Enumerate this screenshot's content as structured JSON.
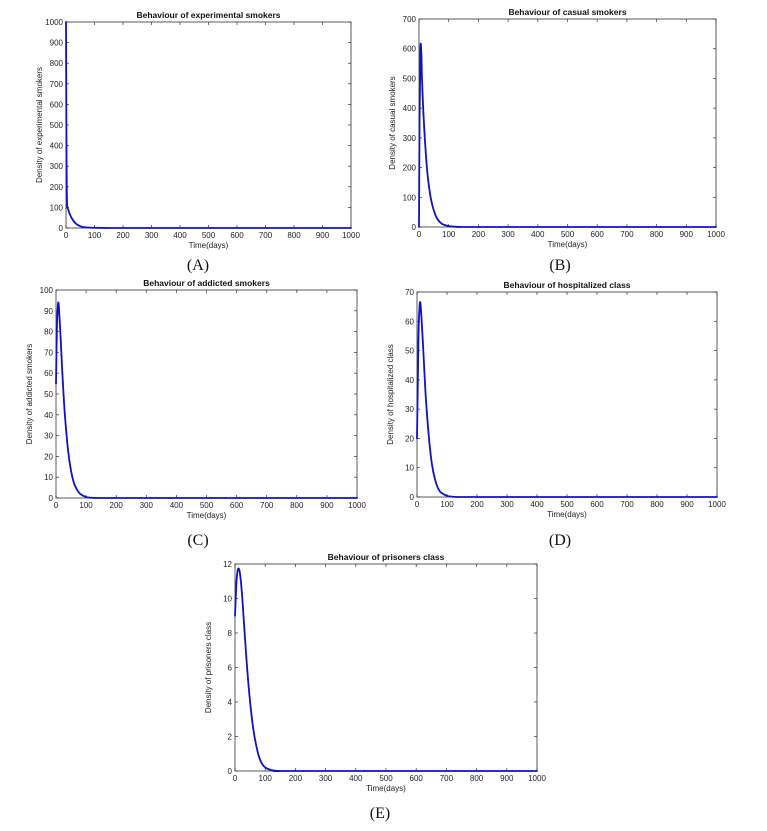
{
  "chart_data": [
    {
      "type": "line",
      "title": "Behaviour of experimental smokers",
      "xlabel": "Time(days)",
      "ylabel": "Density of experimental smokers",
      "xlim": [
        0,
        1000
      ],
      "ylim": [
        0,
        1000
      ],
      "xticks": [
        0,
        100,
        200,
        300,
        400,
        500,
        600,
        700,
        800,
        900,
        1000
      ],
      "yticks": [
        0,
        100,
        200,
        300,
        400,
        500,
        600,
        700,
        800,
        900,
        1000
      ],
      "grid": false,
      "color": "#1010c8",
      "panel_label": "(A)",
      "series": [
        {
          "x": [
            0,
            1,
            2,
            3,
            4,
            6,
            8,
            10,
            15,
            20,
            30,
            40,
            50,
            60,
            80,
            100,
            150,
            200,
            1000
          ],
          "y": [
            1000,
            600,
            300,
            160,
            110,
            95,
            88,
            80,
            62,
            48,
            28,
            16,
            9,
            5,
            2,
            1,
            0,
            0,
            0
          ]
        }
      ]
    },
    {
      "type": "line",
      "title": "Behaviour of casual smokers",
      "xlabel": "Time(days)",
      "ylabel": "Density of casual smokers",
      "xlim": [
        0,
        1000
      ],
      "ylim": [
        0,
        700
      ],
      "xticks": [
        0,
        100,
        200,
        300,
        400,
        500,
        600,
        700,
        800,
        900,
        1000
      ],
      "yticks": [
        0,
        100,
        200,
        300,
        400,
        500,
        600,
        700
      ],
      "grid": false,
      "color": "#1010c8",
      "panel_label": "(B)",
      "series": [
        {
          "x": [
            0,
            2,
            5,
            8,
            10,
            15,
            20,
            25,
            30,
            40,
            50,
            60,
            70,
            80,
            100,
            120,
            150,
            200,
            1000
          ],
          "y": [
            0,
            380,
            605,
            580,
            500,
            380,
            290,
            220,
            165,
            95,
            55,
            30,
            17,
            9,
            3,
            1,
            0,
            0,
            0
          ]
        }
      ]
    },
    {
      "type": "line",
      "title": "Behaviour of addicted smokers",
      "xlabel": "Time(days)",
      "ylabel": "Density of addicted smokers",
      "xlim": [
        0,
        1000
      ],
      "ylim": [
        0,
        100
      ],
      "xticks": [
        0,
        100,
        200,
        300,
        400,
        500,
        600,
        700,
        800,
        900,
        1000
      ],
      "yticks": [
        0,
        10,
        20,
        30,
        40,
        50,
        60,
        70,
        80,
        90,
        100
      ],
      "grid": false,
      "color": "#1010c8",
      "panel_label": "(C)",
      "series": [
        {
          "x": [
            0,
            3,
            6,
            8,
            10,
            15,
            20,
            25,
            30,
            40,
            50,
            60,
            70,
            80,
            100,
            120,
            150,
            200,
            1000
          ],
          "y": [
            55,
            82,
            92,
            94,
            91,
            78,
            63,
            50,
            39,
            23,
            13,
            7,
            4,
            2,
            0.5,
            0.1,
            0,
            0,
            0
          ]
        }
      ]
    },
    {
      "type": "line",
      "title": "Behaviour of hospitalized class",
      "xlabel": "Time(days)",
      "ylabel": "Density of hospitalized class",
      "xlim": [
        0,
        1000
      ],
      "ylim": [
        0,
        70
      ],
      "xticks": [
        0,
        100,
        200,
        300,
        400,
        500,
        600,
        700,
        800,
        900,
        1000
      ],
      "yticks": [
        0,
        10,
        20,
        30,
        40,
        50,
        60,
        70
      ],
      "grid": false,
      "color": "#1010c8",
      "panel_label": "(D)",
      "series": [
        {
          "x": [
            0,
            5,
            8,
            10,
            12,
            15,
            20,
            25,
            30,
            40,
            50,
            60,
            70,
            80,
            100,
            120,
            150,
            200,
            1000
          ],
          "y": [
            20,
            55,
            64,
            66.5,
            65.5,
            61,
            52,
            42,
            33,
            20,
            11,
            6,
            3,
            1.5,
            0.4,
            0.1,
            0,
            0,
            0
          ]
        }
      ]
    },
    {
      "type": "line",
      "title": "Behaviour of prisoners class",
      "xlabel": "Time(days)",
      "ylabel": "Density of prisoners class",
      "xlim": [
        0,
        1000
      ],
      "ylim": [
        0,
        12
      ],
      "xticks": [
        0,
        100,
        200,
        300,
        400,
        500,
        600,
        700,
        800,
        900,
        1000
      ],
      "yticks": [
        0,
        2,
        4,
        6,
        8,
        10,
        12
      ],
      "grid": false,
      "color": "#1010c8",
      "panel_label": "(E)",
      "series": [
        {
          "x": [
            0,
            5,
            10,
            15,
            20,
            25,
            30,
            40,
            50,
            60,
            70,
            80,
            90,
            100,
            120,
            150,
            200,
            1000
          ],
          "y": [
            9,
            11,
            11.7,
            11.6,
            10.9,
            9.8,
            8.5,
            6,
            4,
            2.5,
            1.5,
            0.8,
            0.4,
            0.2,
            0.05,
            0,
            0,
            0
          ]
        }
      ]
    }
  ]
}
